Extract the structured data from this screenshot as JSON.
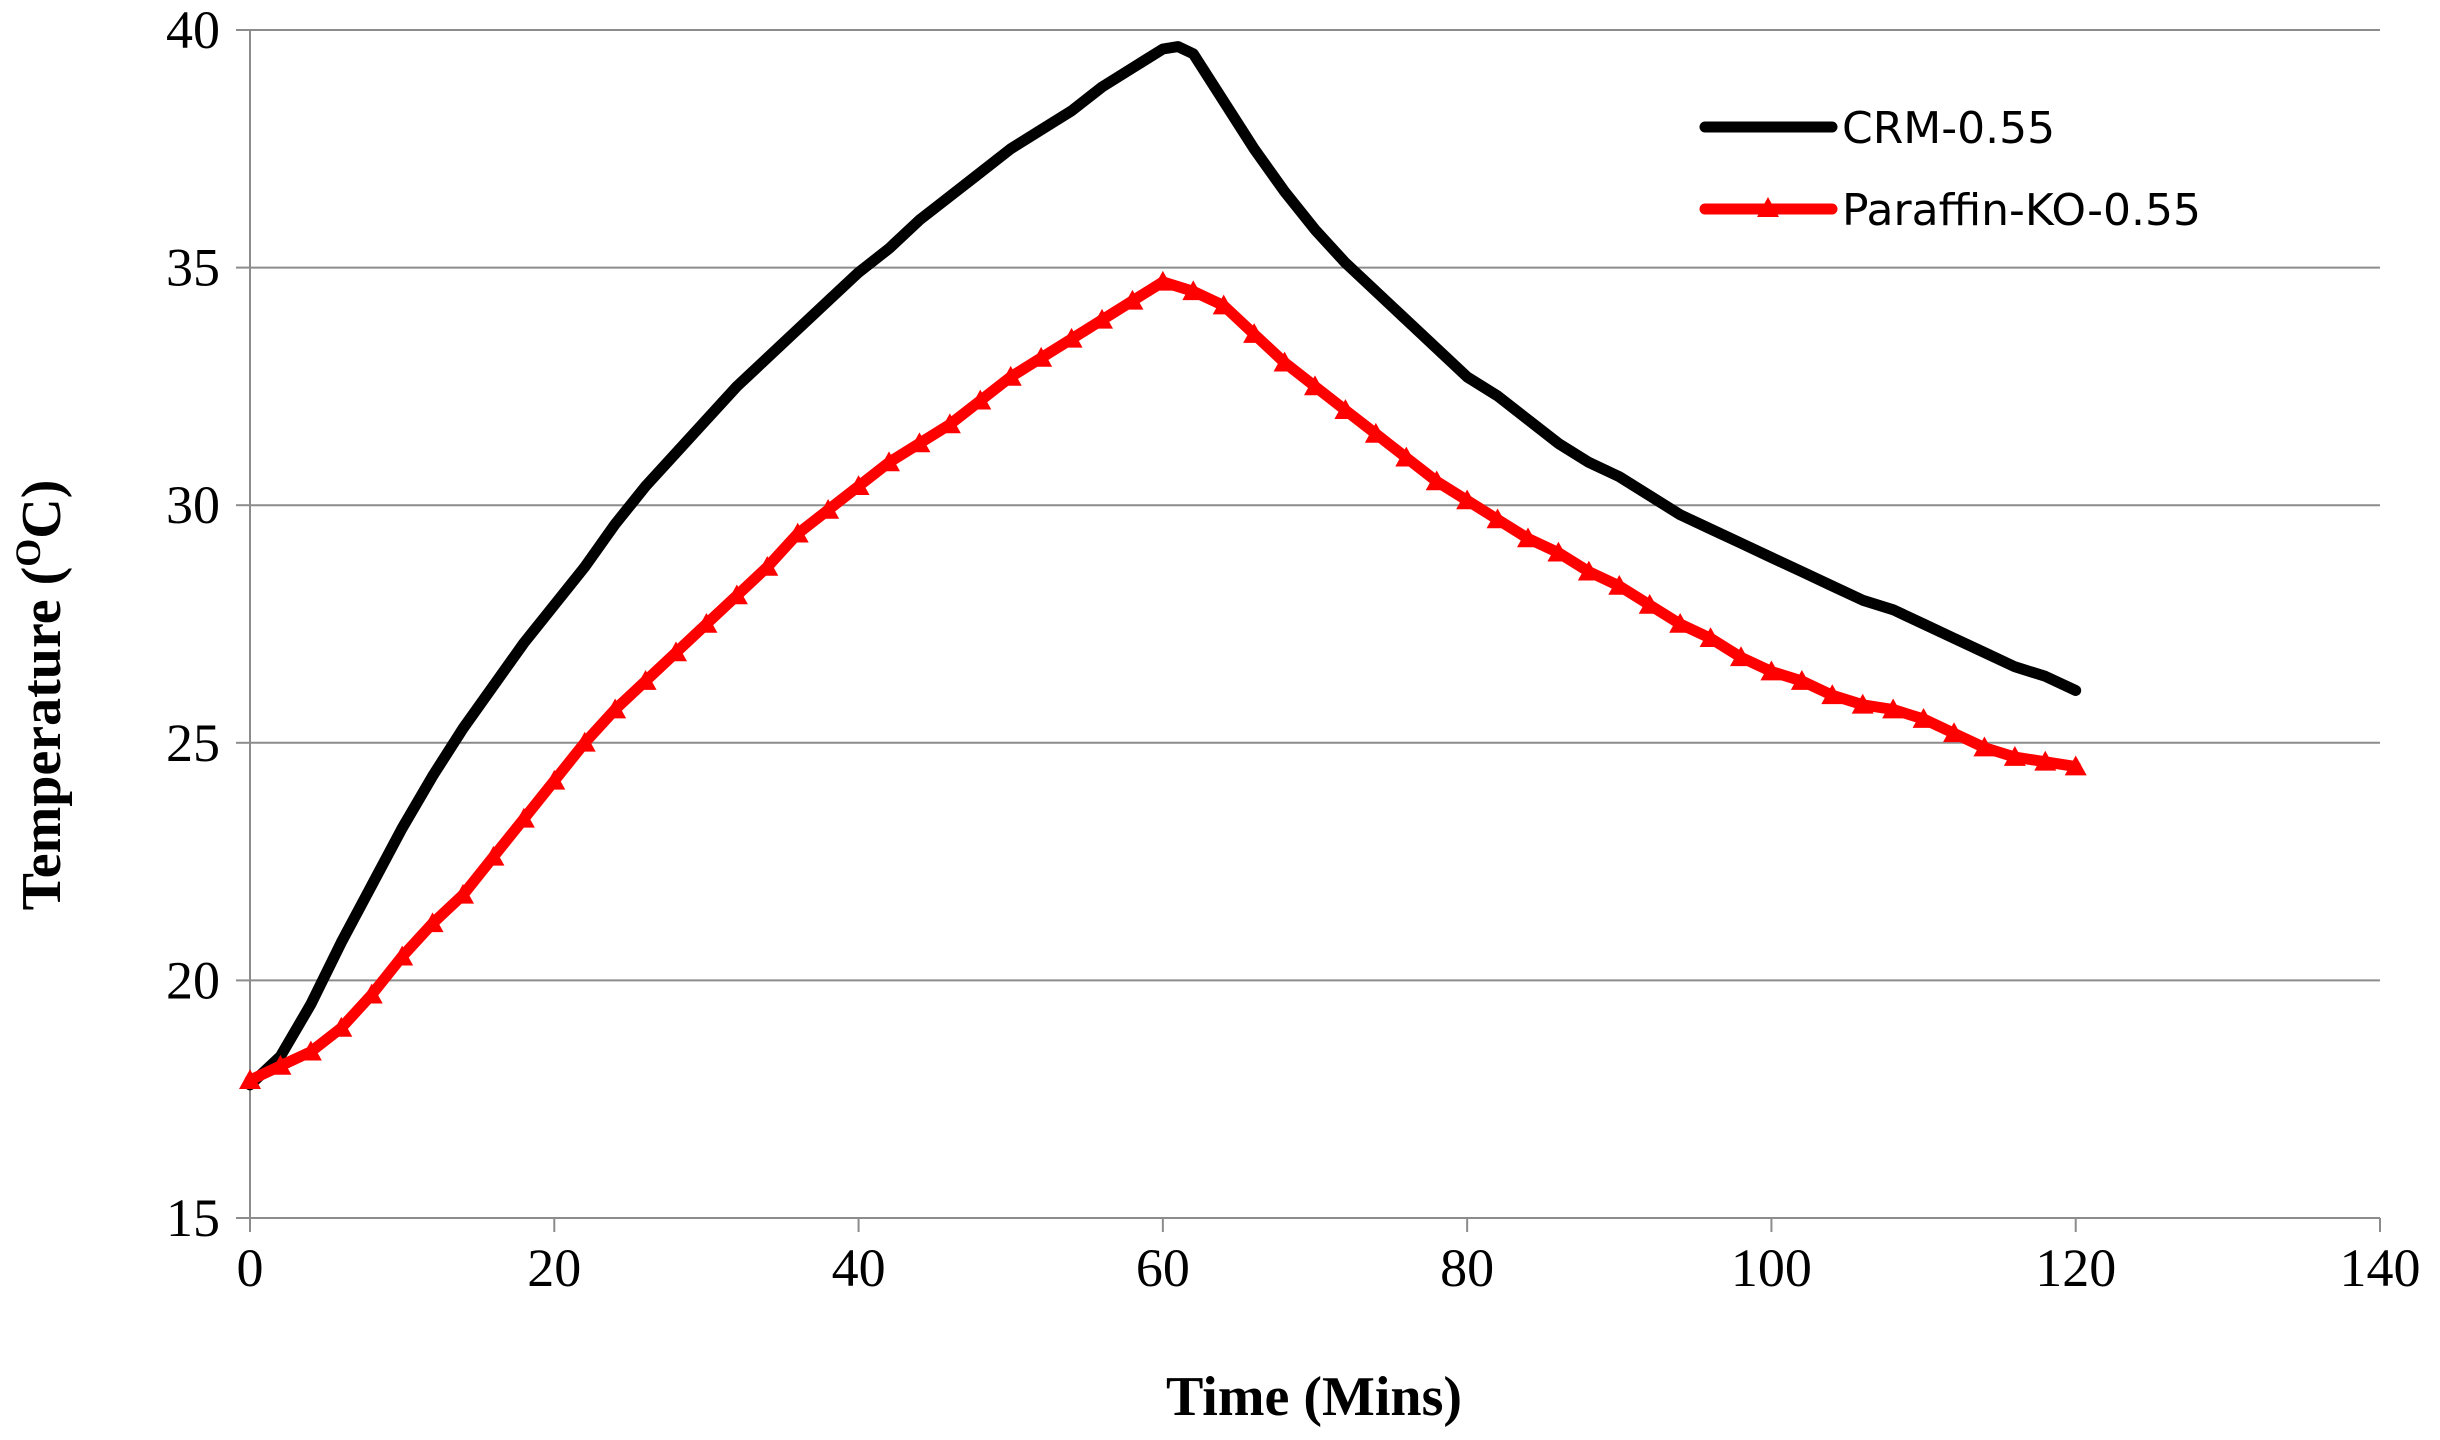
{
  "chart_data": {
    "type": "line",
    "xlabel": "Time (Mins)",
    "ylabel_main": "Temperature (",
    "ylabel_sup": "O",
    "ylabel_end": "C)",
    "xlim": [
      0,
      140
    ],
    "ylim": [
      15,
      40
    ],
    "xticks": [
      "0",
      "20",
      "40",
      "60",
      "80",
      "100",
      "120",
      "140"
    ],
    "yticks": [
      "15",
      "20",
      "25",
      "30",
      "35",
      "40"
    ],
    "grid": "horizontal",
    "legend_position": "top-right",
    "series": [
      {
        "name": "CRM-0.55",
        "color": "#000000",
        "marker": "none",
        "x": [
          0,
          2,
          4,
          6,
          8,
          10,
          12,
          14,
          16,
          18,
          20,
          22,
          24,
          26,
          28,
          30,
          32,
          34,
          36,
          38,
          40,
          42,
          44,
          46,
          48,
          50,
          52,
          54,
          56,
          58,
          60,
          61,
          62,
          64,
          66,
          68,
          70,
          72,
          74,
          76,
          78,
          80,
          82,
          84,
          86,
          88,
          90,
          92,
          94,
          96,
          98,
          100,
          102,
          104,
          106,
          108,
          110,
          112,
          114,
          116,
          118,
          120
        ],
        "values": [
          17.8,
          18.4,
          19.5,
          20.8,
          22.0,
          23.2,
          24.3,
          25.3,
          26.2,
          27.1,
          27.9,
          28.7,
          29.6,
          30.4,
          31.1,
          31.8,
          32.5,
          33.1,
          33.7,
          34.3,
          34.9,
          35.4,
          36.0,
          36.5,
          37.0,
          37.5,
          37.9,
          38.3,
          38.8,
          39.2,
          39.6,
          39.65,
          39.5,
          38.5,
          37.5,
          36.6,
          35.8,
          35.1,
          34.5,
          33.9,
          33.3,
          32.7,
          32.3,
          31.8,
          31.3,
          30.9,
          30.6,
          30.2,
          29.8,
          29.5,
          29.2,
          28.9,
          28.6,
          28.3,
          28.0,
          27.8,
          27.5,
          27.2,
          26.9,
          26.6,
          26.4,
          26.1
        ]
      },
      {
        "name": "Paraffin-KO-0.55",
        "color": "#ff0000",
        "marker": "triangle",
        "x": [
          0,
          2,
          4,
          6,
          8,
          10,
          12,
          14,
          16,
          18,
          20,
          22,
          24,
          26,
          28,
          30,
          32,
          34,
          36,
          38,
          40,
          42,
          44,
          46,
          48,
          50,
          52,
          54,
          56,
          58,
          60,
          62,
          64,
          66,
          68,
          70,
          72,
          74,
          76,
          78,
          80,
          82,
          84,
          86,
          88,
          90,
          92,
          94,
          96,
          98,
          100,
          102,
          104,
          106,
          108,
          110,
          112,
          114,
          116,
          118,
          120
        ],
        "values": [
          17.9,
          18.2,
          18.5,
          19.0,
          19.7,
          20.5,
          21.2,
          21.8,
          22.6,
          23.4,
          24.2,
          25.0,
          25.7,
          26.3,
          26.9,
          27.5,
          28.1,
          28.7,
          29.4,
          29.9,
          30.4,
          30.9,
          31.3,
          31.7,
          32.2,
          32.7,
          33.1,
          33.5,
          33.9,
          34.3,
          34.7,
          34.5,
          34.2,
          33.6,
          33.0,
          32.5,
          32.0,
          31.5,
          31.0,
          30.5,
          30.1,
          29.7,
          29.3,
          29.0,
          28.6,
          28.3,
          27.9,
          27.5,
          27.2,
          26.8,
          26.5,
          26.3,
          26.0,
          25.8,
          25.7,
          25.5,
          25.2,
          24.9,
          24.7,
          24.6,
          24.5
        ]
      }
    ]
  }
}
